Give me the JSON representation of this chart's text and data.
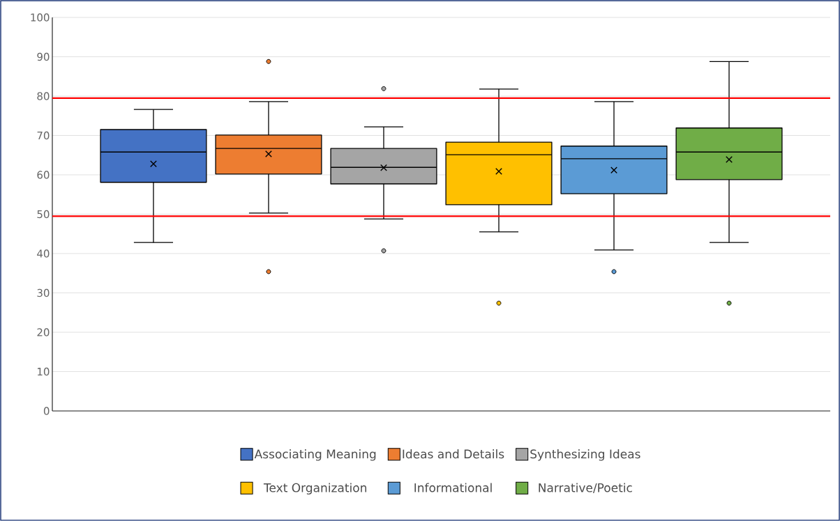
{
  "chart_data": {
    "type": "box",
    "categories": [
      null
    ],
    "series": [
      {
        "name": "Associating Meaning",
        "color": "#4472c4",
        "boxes": [
          {
            "low": 42.8,
            "q1": 58.1,
            "median": 65.8,
            "q3": 71.5,
            "high": 76.6,
            "mean": 62.8
          }
        ]
      },
      {
        "name": "Ideas and Details",
        "color": "#ed7d31",
        "boxes": [
          {
            "low": 50.3,
            "q1": 60.2,
            "median": 66.7,
            "q3": 70.1,
            "high": 78.6,
            "mean": 65.3,
            "outliers": [
              88.8,
              35.4
            ]
          }
        ]
      },
      {
        "name": "Synthesizing Ideas",
        "color": "#a5a5a5",
        "boxes": [
          {
            "low": 48.8,
            "q1": 57.7,
            "median": 61.9,
            "q3": 66.7,
            "high": 72.2,
            "mean": 61.8,
            "outliers": [
              81.9,
              40.7
            ]
          }
        ]
      },
      {
        "name": "Text Organization",
        "color": "#ffc000",
        "boxes": [
          {
            "low": 45.5,
            "q1": 52.4,
            "median": 65.1,
            "q3": 68.3,
            "high": 81.8,
            "mean": 60.9,
            "outliers": [
              27.4
            ]
          }
        ]
      },
      {
        "name": "Informational",
        "color": "#5b9bd5",
        "boxes": [
          {
            "low": 40.9,
            "q1": 55.2,
            "median": 64.1,
            "q3": 67.3,
            "high": 78.6,
            "mean": 61.2,
            "outliers": [
              35.4
            ]
          }
        ]
      },
      {
        "name": "Narrative/Poetic",
        "color": "#70ad47",
        "boxes": [
          {
            "low": 42.8,
            "q1": 58.8,
            "median": 65.8,
            "q3": 71.9,
            "high": 88.8,
            "mean": 63.9,
            "outliers": [
              27.4
            ]
          }
        ]
      }
    ],
    "ylim": [
      0,
      100
    ],
    "yticks": [
      0,
      10,
      20,
      30,
      40,
      50,
      60,
      70,
      80,
      90,
      100
    ],
    "ref_lines": [
      {
        "axis": "y",
        "value": 79.5,
        "color": "#ff0000"
      },
      {
        "axis": "y",
        "value": 49.5,
        "color": "#ff0000"
      }
    ],
    "grid": "y",
    "legend": "bottom",
    "marker": "cross"
  }
}
